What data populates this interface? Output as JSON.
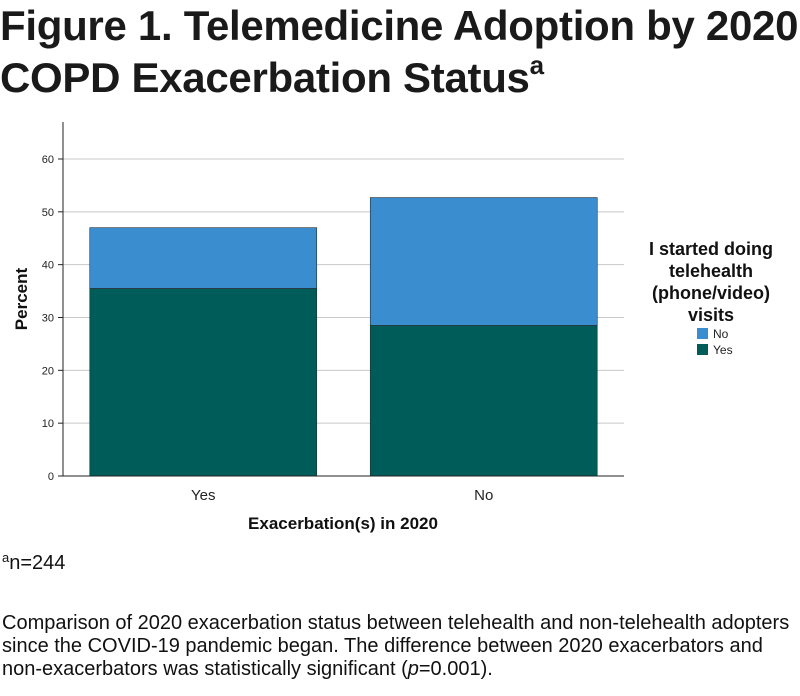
{
  "figure": {
    "title_line1": "Figure 1.  Telemedicine Adoption by 2020",
    "title_line2": "COPD Exacerbation Status",
    "title_sup": "a",
    "footnote_sup": "a",
    "footnote_text": "n=244",
    "caption_part1": "Comparison of 2020 exacerbation status between telehealth and non-telehealth adopters since the COVID-19 pandemic began. The difference between 2020 exacerbators and non-exacerbators was statistically significant (",
    "caption_p": "p",
    "caption_part2": "=0.001)."
  },
  "chart_data": {
    "type": "bar",
    "stacked": true,
    "categories": [
      "Yes",
      "No"
    ],
    "series": [
      {
        "name": "Yes",
        "values": [
          35.5,
          28.5
        ],
        "color": "#005c58"
      },
      {
        "name": "No",
        "values": [
          11.5,
          24.2
        ],
        "color": "#3a8ecf"
      }
    ],
    "xlabel": "Exacerbation(s) in 2020",
    "ylabel": "Percent",
    "ylim": [
      0,
      67
    ],
    "yticks": [
      0,
      10,
      20,
      30,
      40,
      50,
      60
    ],
    "grid": true,
    "legend": {
      "title": [
        "I started doing",
        "telehealth",
        "(phone/video)",
        "visits"
      ],
      "position": "right",
      "items": [
        {
          "label": "No",
          "color": "#3a8ecf"
        },
        {
          "label": "Yes",
          "color": "#005c58"
        }
      ]
    }
  }
}
